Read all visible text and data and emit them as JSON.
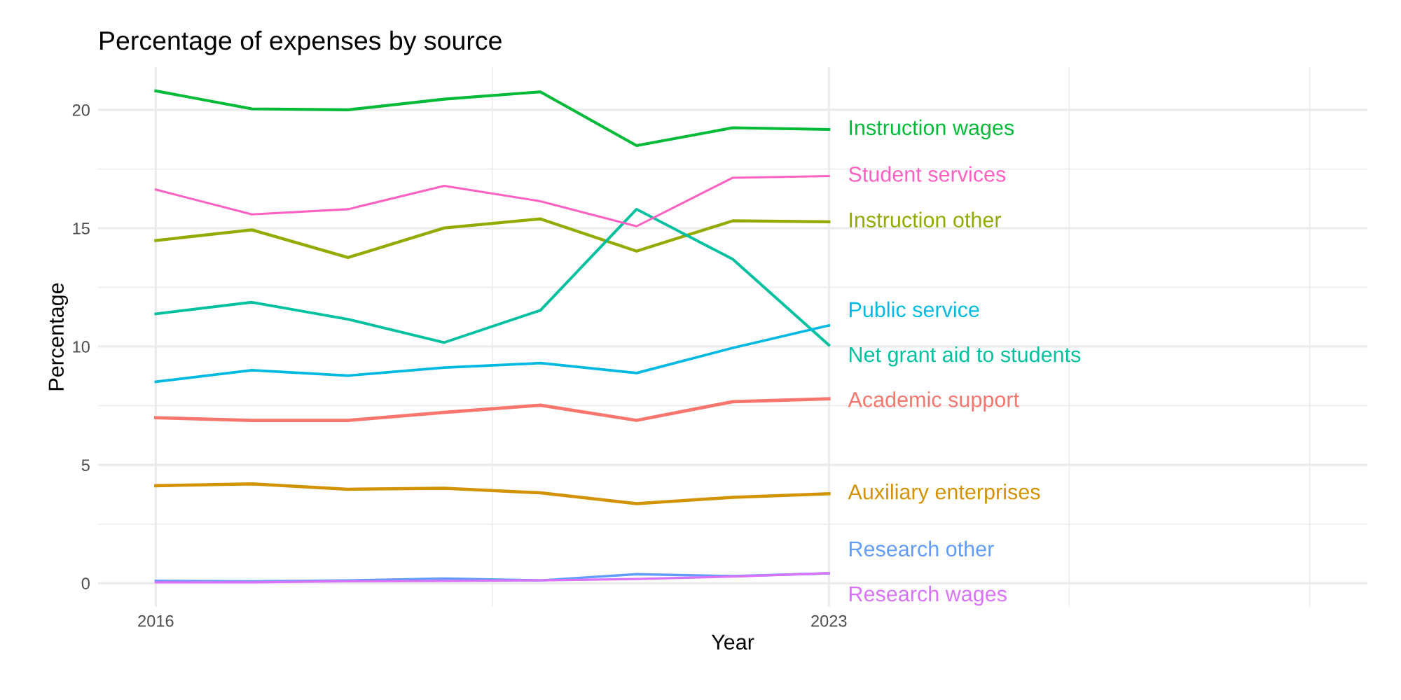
{
  "chart_data": {
    "type": "line",
    "title": "Percentage of expenses by source",
    "xlabel": "Year",
    "ylabel": "Percentage",
    "x": [
      2016,
      2017,
      2018,
      2019,
      2020,
      2021,
      2022,
      2023
    ],
    "xlim": [
      2015.4,
      2028.6
    ],
    "xticks": [
      2016,
      {
        "value": 2019.5,
        "label": null
      },
      2023,
      {
        "value": 2025.5,
        "label": null
      },
      {
        "value": 2028,
        "label": null
      }
    ],
    "ylim": [
      -1.0,
      21.8
    ],
    "yticks": [
      0,
      {
        "value": 2.5,
        "label": null
      },
      5,
      {
        "value": 7.5,
        "label": null
      },
      10,
      {
        "value": 12.5,
        "label": null
      },
      15,
      {
        "value": 17.5,
        "label": null
      },
      20
    ],
    "grid": true,
    "legend": false,
    "line_style": "solid",
    "marker": "none",
    "series": [
      {
        "name": "Academic support",
        "color": "#f8766d",
        "values": [
          6.99,
          6.88,
          6.88,
          7.22,
          7.52,
          6.88,
          7.67,
          7.79
        ]
      },
      {
        "name": "Auxiliary enterprises",
        "color": "#d39200",
        "values": [
          4.12,
          4.2,
          3.97,
          4.01,
          3.82,
          3.36,
          3.63,
          3.78
        ]
      },
      {
        "name": "Instruction other",
        "color": "#93aa00",
        "values": [
          14.48,
          14.93,
          13.76,
          15.01,
          15.39,
          14.03,
          15.31,
          15.27
        ]
      },
      {
        "name": "Instruction wages",
        "color": "#00ba38",
        "values": [
          20.8,
          20.04,
          20.0,
          20.45,
          20.76,
          18.49,
          19.24,
          19.17
        ]
      },
      {
        "name": "Net grant aid to students",
        "color": "#00c19f",
        "values": [
          11.38,
          11.87,
          11.15,
          10.17,
          11.53,
          15.8,
          13.69,
          10.06
        ]
      },
      {
        "name": "Public service",
        "color": "#00b9e3",
        "values": [
          8.51,
          9.0,
          8.77,
          9.11,
          9.3,
          8.88,
          9.94,
          10.89
        ]
      },
      {
        "name": "Research other",
        "color": "#619cff",
        "values": [
          0.1,
          0.08,
          0.12,
          0.2,
          0.12,
          0.38,
          0.3,
          0.42
        ]
      },
      {
        "name": "Research wages",
        "color": "#db72fb",
        "values": [
          0.04,
          0.04,
          0.08,
          0.1,
          0.12,
          0.18,
          0.28,
          0.42
        ]
      },
      {
        "name": "Student services",
        "color": "#ff61c3",
        "values": [
          16.63,
          15.58,
          15.8,
          16.79,
          16.14,
          15.08,
          17.13,
          17.2
        ]
      }
    ]
  }
}
